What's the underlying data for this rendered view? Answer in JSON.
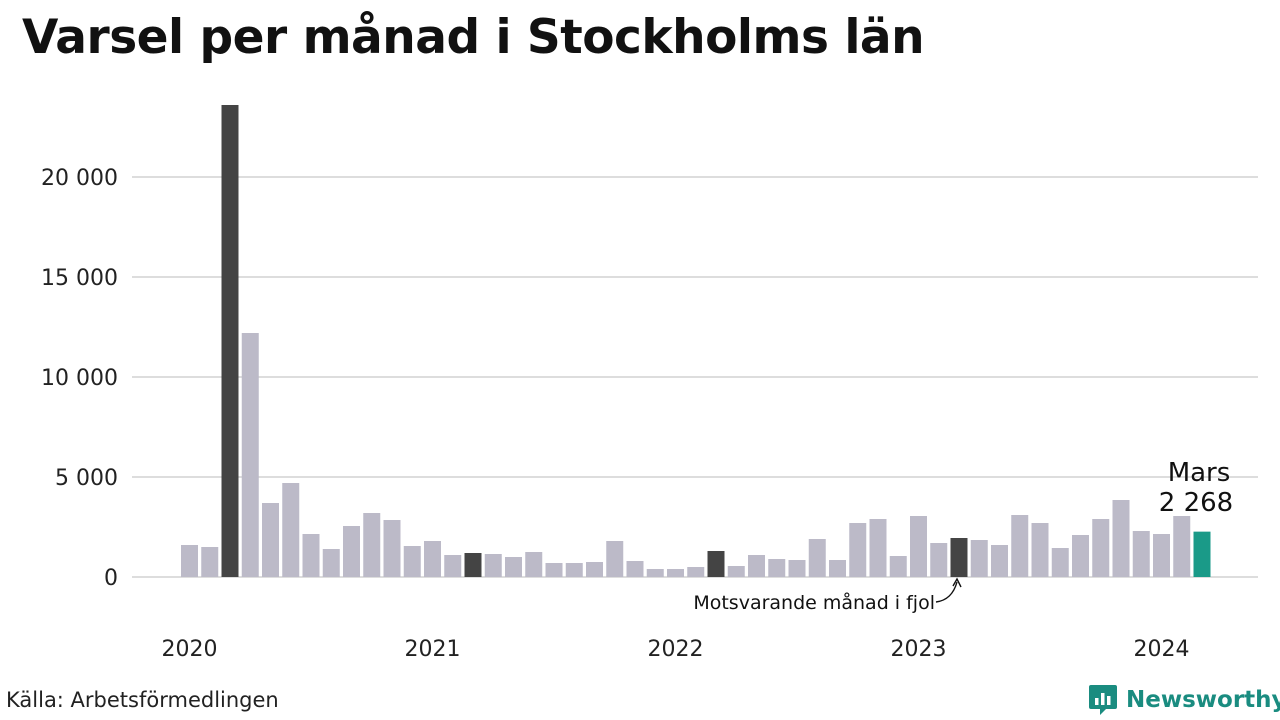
{
  "title": "Varsel per månad i Stockholms län",
  "source": "Källa: Arbetsförmedlingen",
  "brand": {
    "name": "Newsworthy",
    "icon": "newsworthy-logo-icon"
  },
  "colors": {
    "bar": "#bcbac8",
    "same_month": "#444444",
    "current": "#1a9a88",
    "grid": "#dddddd",
    "brand": "#1a8c80"
  },
  "chart_data": {
    "type": "bar",
    "x": [
      "2020-01",
      "2020-02",
      "2020-03",
      "2020-04",
      "2020-05",
      "2020-06",
      "2020-07",
      "2020-08",
      "2020-09",
      "2020-10",
      "2020-11",
      "2020-12",
      "2021-01",
      "2021-02",
      "2021-03",
      "2021-04",
      "2021-05",
      "2021-06",
      "2021-07",
      "2021-08",
      "2021-09",
      "2021-10",
      "2021-11",
      "2021-12",
      "2022-01",
      "2022-02",
      "2022-03",
      "2022-04",
      "2022-05",
      "2022-06",
      "2022-07",
      "2022-08",
      "2022-09",
      "2022-10",
      "2022-11",
      "2022-12",
      "2023-01",
      "2023-02",
      "2023-03",
      "2023-04",
      "2023-05",
      "2023-06",
      "2023-07",
      "2023-08",
      "2023-09",
      "2023-10",
      "2023-11",
      "2023-12",
      "2024-01",
      "2024-02",
      "2024-03"
    ],
    "values": [
      1600,
      1500,
      23600,
      12200,
      3700,
      4700,
      2150,
      1400,
      2550,
      3200,
      2850,
      1550,
      1800,
      1100,
      1200,
      1150,
      1000,
      1250,
      700,
      700,
      750,
      1800,
      800,
      400,
      400,
      500,
      1300,
      550,
      1100,
      900,
      850,
      1900,
      850,
      2700,
      2900,
      1050,
      3050,
      1700,
      1950,
      1850,
      1600,
      3100,
      2700,
      1450,
      2100,
      2900,
      3850,
      2300,
      2150,
      3050,
      2268
    ],
    "highlight_same_month": [
      "2020-03",
      "2021-03",
      "2022-03",
      "2023-03"
    ],
    "highlight_current": "2024-03",
    "xlabel": "",
    "ylabel": "",
    "ylim": [
      0,
      23700
    ],
    "y_ticks": [
      0,
      5000,
      10000,
      15000,
      20000
    ],
    "y_tick_labels": [
      "0",
      "5 000",
      "10 000",
      "15 000",
      "20 000"
    ],
    "x_tick_labels": [
      "2020",
      "2021",
      "2022",
      "2023",
      "2024"
    ],
    "grid": true,
    "annotations": {
      "current_month": "Mars",
      "current_value": "2 268",
      "same_month": "Motsvarande månad i fjol"
    }
  }
}
